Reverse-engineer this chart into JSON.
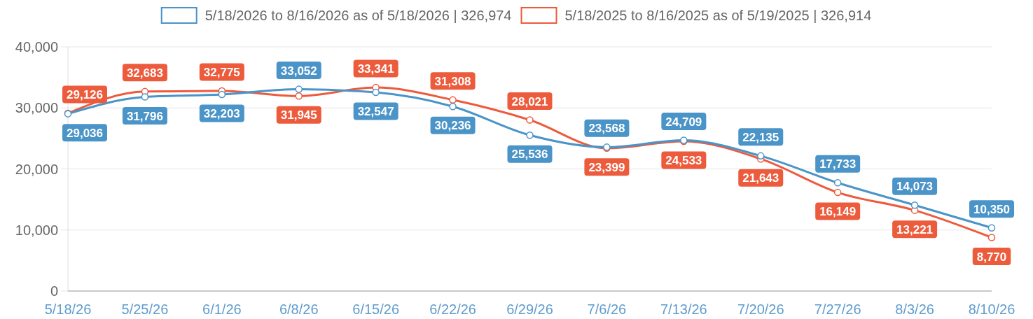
{
  "chart_data": {
    "type": "line",
    "categories": [
      "5/18/26",
      "5/25/26",
      "6/1/26",
      "6/8/26",
      "6/15/26",
      "6/22/26",
      "6/29/26",
      "7/6/26",
      "7/13/26",
      "7/20/26",
      "7/27/26",
      "8/3/26",
      "8/10/26"
    ],
    "series": [
      {
        "name": "5/18/2026 to 8/16/2026 as of 5/18/2026 | 326,974",
        "color": "#4a94c8",
        "values": [
          29036,
          31796,
          32203,
          33052,
          32547,
          30236,
          25536,
          23568,
          24709,
          22135,
          17733,
          14073,
          10350
        ],
        "value_labels": [
          "29,036",
          "31,796",
          "32,203",
          "33,052",
          "32,547",
          "30,236",
          "25,536",
          "23,568",
          "24,709",
          "22,135",
          "17,733",
          "14,073",
          "10,350"
        ]
      },
      {
        "name": "5/18/2025 to 8/16/2025 as of 5/19/2025 | 326,914",
        "color": "#ed5b3d",
        "values": [
          29126,
          32683,
          32775,
          31945,
          33341,
          31308,
          28021,
          23399,
          24533,
          21643,
          16149,
          13221,
          8770
        ],
        "value_labels": [
          "29,126",
          "32,683",
          "32,775",
          "31,945",
          "33,341",
          "31,308",
          "28,021",
          "23,399",
          "24,533",
          "21,643",
          "16,149",
          "13,221",
          "8,770"
        ]
      }
    ],
    "ylim": [
      0,
      40000
    ],
    "yticks": [
      {
        "value": 0,
        "label": "0"
      },
      {
        "value": 10000,
        "label": "10,000"
      },
      {
        "value": 20000,
        "label": "20,000"
      },
      {
        "value": 30000,
        "label": "30,000"
      },
      {
        "value": 40000,
        "label": "40,000"
      }
    ],
    "grid": "y",
    "legend": "top",
    "marker": "circle",
    "line_style": "solid"
  }
}
